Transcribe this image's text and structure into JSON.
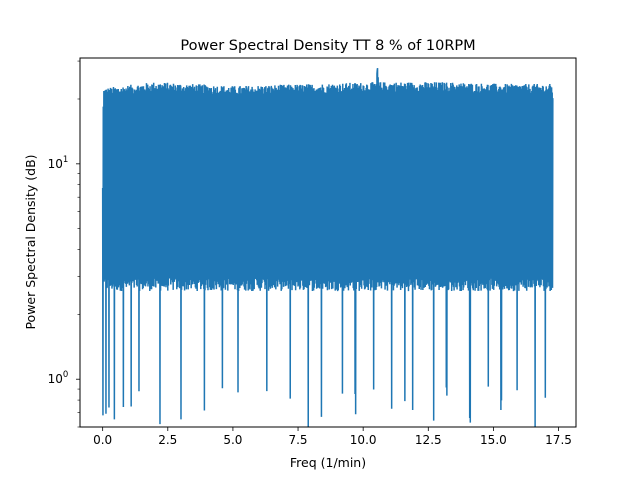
{
  "chart_data": {
    "type": "line",
    "title": "Power Spectral Density TT 8 % of 10RPM",
    "xlabel": "Freq (1/min)",
    "ylabel": "Power Spectral Density (dB)",
    "xlim": [
      -0.87,
      18.17
    ],
    "ylim": [
      0.6,
      31
    ],
    "yscale": "log",
    "grid": false,
    "x_ticks": [
      {
        "value": 0.0,
        "label": "0.0"
      },
      {
        "value": 2.5,
        "label": "2.5"
      },
      {
        "value": 5.0,
        "label": "5.0"
      },
      {
        "value": 7.5,
        "label": "7.5"
      },
      {
        "value": 10.0,
        "label": "10.0"
      },
      {
        "value": 12.5,
        "label": "12.5"
      },
      {
        "value": 15.0,
        "label": "15.0"
      },
      {
        "value": 17.5,
        "label": "17.5"
      }
    ],
    "y_ticks": [
      {
        "value": 1,
        "mantissa": "10",
        "exponent": "0"
      },
      {
        "value": 10,
        "mantissa": "10",
        "exponent": "1"
      }
    ],
    "series": [
      {
        "color": "#1f77b4",
        "x_start": 0.0,
        "x_end": 17.28,
        "upper_envelope": [
          [
            0.0,
            8.0
          ],
          [
            0.03,
            22.5
          ],
          [
            2.0,
            24
          ],
          [
            5.0,
            23
          ],
          [
            8.0,
            23.5
          ],
          [
            10.5,
            24
          ],
          [
            10.55,
            28
          ],
          [
            10.6,
            24
          ],
          [
            13.0,
            24
          ],
          [
            15.5,
            23.5
          ],
          [
            17.25,
            23.5
          ],
          [
            17.28,
            22
          ]
        ],
        "typical_upper": 22,
        "typical_lower": 2.7,
        "dips": [
          0.02,
          0.12,
          0.25,
          0.45,
          0.8,
          1.1,
          1.4,
          2.2,
          3.0,
          3.9,
          4.6,
          5.2,
          6.3,
          7.2,
          7.9,
          8.4,
          9.2,
          9.7,
          10.4,
          11.1,
          11.6,
          11.9,
          12.7,
          13.2,
          14.1,
          14.8,
          15.3,
          15.9,
          16.6,
          17.0
        ],
        "min_value": 0.6
      }
    ]
  }
}
